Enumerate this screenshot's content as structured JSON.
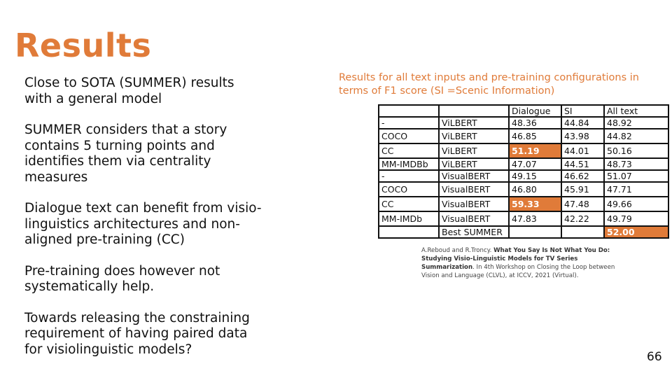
{
  "slide": {
    "title": "Results",
    "bullets": [
      "Close to SOTA (SUMMER) results with a general model",
      "SUMMER considers that a story contains 5 turning points and identifies them via centrality measures",
      "Dialogue text can benefit from visio-linguistics architectures and non-aligned pre-training (CC)",
      "Pre-training does however not systematically help.",
      "Towards releasing the constraining requirement of having paired data for visiolinguistic models?"
    ],
    "caption": "Results for all text inputs and pre-training configurations in terms of F1 score (SI =Scenic Information)",
    "table": {
      "headers": [
        "",
        "",
        "Dialogue",
        "SI",
        "All text"
      ],
      "rows": [
        [
          "-",
          "ViLBERT",
          "48.36",
          "44.84",
          "48.92"
        ],
        [
          "COCO",
          "ViLBERT",
          "46.85",
          "43.98",
          "44.82"
        ],
        [
          "CC",
          "ViLBERT",
          "51.19",
          "44.01",
          "50.16"
        ],
        [
          "MM-IMDBb",
          "ViLBERT",
          "47.07",
          "44.51",
          "48.73"
        ],
        [
          "-",
          "VisualBERT",
          "49.15",
          "46.62",
          "51.07"
        ],
        [
          "COCO",
          "VisualBERT",
          "46.80",
          "45.91",
          "47.71"
        ],
        [
          "CC",
          "VisualBERT",
          "59.33",
          "47.48",
          "49.66"
        ],
        [
          "MM-IMDb",
          "VisualBERT",
          "47.83",
          "42.22",
          "49.79"
        ],
        [
          "",
          "Best SUMMER",
          "",
          "",
          "52.00"
        ]
      ],
      "highlight_color": "#e07b39"
    },
    "reference": {
      "authors": "A.Reboud and R.Troncy.",
      "paper_title": "What You Say Is Not What You Do: Studying Visio-Linguistic Models for TV Series Summarization",
      "venue": ". In 4th Workshop on Closing the Loop between Vision and Language (CLVL), at ICCV, 2021 (Virtual)."
    },
    "page_number": "66"
  }
}
